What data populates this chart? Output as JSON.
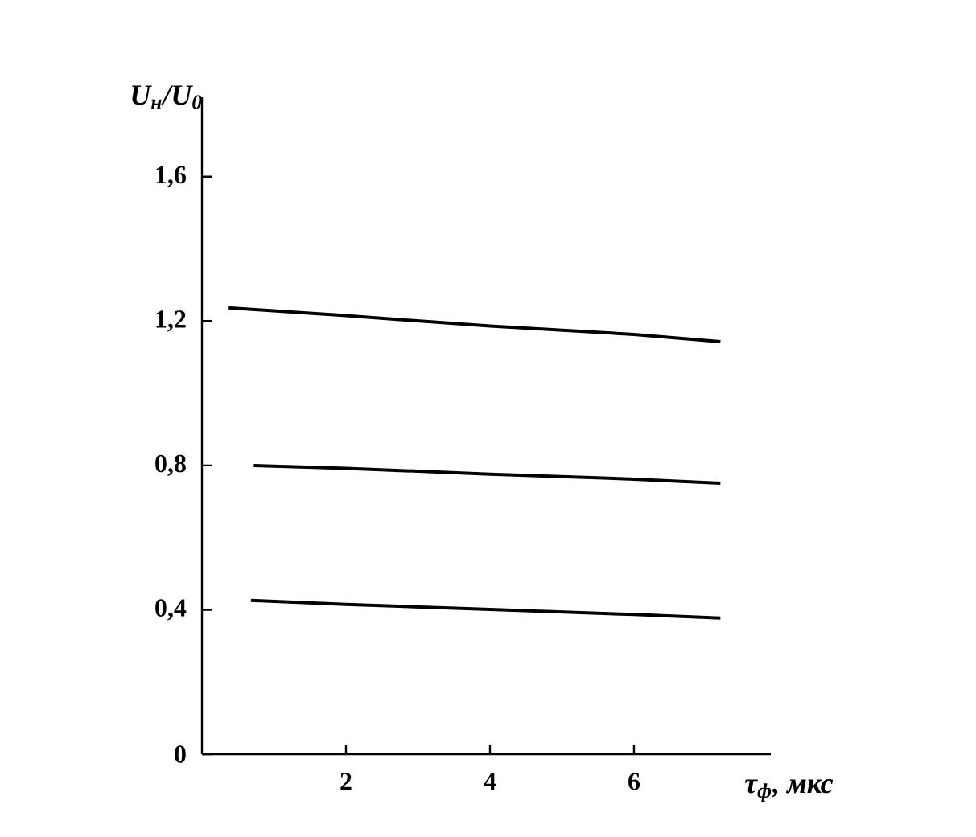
{
  "chart_data": {
    "type": "line",
    "xlabel": "τ$_{ф}$, мкс",
    "ylabel": "U$_{н}$/U$_{0}$",
    "xlim": [
      0,
      7.9
    ],
    "ylim": [
      0,
      1.82
    ],
    "xticks": [
      2,
      4,
      6
    ],
    "yticks": [
      0,
      {
        "value": 0.4,
        "label": "0,4"
      },
      {
        "value": 0.8,
        "label": "0,8"
      },
      {
        "value": 1.2,
        "label": "1,2"
      },
      {
        "value": 1.6,
        "label": "1,6"
      }
    ],
    "marker": "none",
    "line_style": "solid",
    "series": [
      {
        "color": "#000000",
        "x": [
          0.36,
          2,
          4,
          6,
          7.2
        ],
        "values": [
          1.237,
          1.215,
          1.186,
          1.163,
          1.143
        ]
      },
      {
        "color": "#000000",
        "x": [
          0.72,
          2,
          4,
          6,
          7.2
        ],
        "values": [
          0.8,
          0.792,
          0.776,
          0.762,
          0.751
        ]
      },
      {
        "color": "#000000",
        "x": [
          0.68,
          2,
          4,
          6,
          7.2
        ],
        "values": [
          0.426,
          0.415,
          0.401,
          0.387,
          0.377
        ]
      }
    ]
  }
}
